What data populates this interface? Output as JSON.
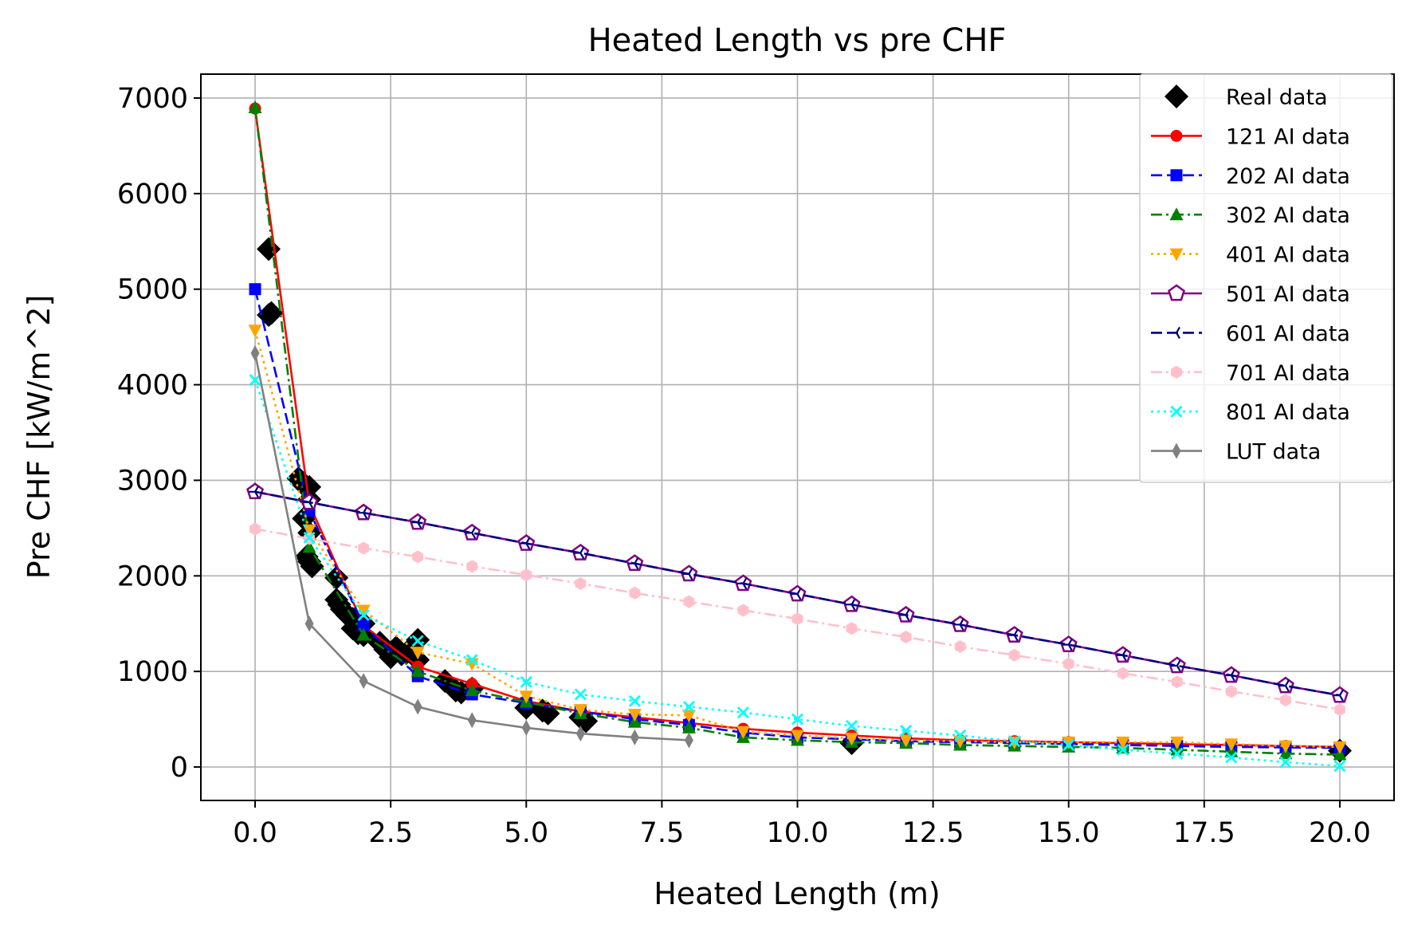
{
  "chart_data": {
    "type": "line",
    "title": "Heated Length vs pre CHF",
    "xlabel": "Heated Length (m)",
    "ylabel": "Pre CHF [kW/m^2]",
    "xlim": [
      -1.0,
      21.0
    ],
    "ylim": [
      -350,
      7250
    ],
    "xticks": [
      0.0,
      2.5,
      5.0,
      7.5,
      10.0,
      12.5,
      15.0,
      17.5,
      20.0
    ],
    "xtick_labels": [
      "0.0",
      "2.5",
      "5.0",
      "7.5",
      "10.0",
      "12.5",
      "15.0",
      "17.5",
      "20.0"
    ],
    "yticks": [
      0,
      1000,
      2000,
      3000,
      4000,
      5000,
      6000,
      7000
    ],
    "ytick_labels": [
      "0",
      "1000",
      "2000",
      "3000",
      "4000",
      "5000",
      "6000",
      "7000"
    ],
    "grid": true,
    "legend_position": "top-right",
    "real_data": {
      "name": "Real data",
      "color": "#000000",
      "marker": "diamond",
      "x": [
        0.25,
        0.25,
        0.3,
        0.8,
        0.9,
        0.9,
        0.95,
        1.0,
        1.0,
        1.0,
        1.0,
        1.05,
        1.5,
        1.5,
        1.55,
        1.6,
        1.7,
        1.8,
        1.8,
        1.9,
        2.0,
        2.0,
        2.3,
        2.4,
        2.5,
        2.6,
        2.7,
        2.8,
        3.0,
        3.0,
        3.5,
        3.7,
        3.8,
        4.0,
        5.0,
        5.3,
        5.4,
        6.0,
        6.1,
        11.0,
        20.0
      ],
      "y": [
        5420,
        4730,
        4750,
        3020,
        2950,
        2600,
        2200,
        2930,
        2800,
        2450,
        2150,
        2100,
        1980,
        1750,
        1700,
        1650,
        1590,
        1550,
        1450,
        1400,
        1500,
        1380,
        1300,
        1230,
        1150,
        1250,
        1180,
        1200,
        1330,
        1120,
        900,
        800,
        780,
        820,
        620,
        590,
        560,
        520,
        480,
        250,
        170
      ]
    },
    "series": [
      {
        "name": "121 AI data",
        "color": "#ff0000",
        "marker": "circle",
        "dash": "solid",
        "x": [
          0,
          1,
          2,
          3,
          4,
          5,
          6,
          7,
          8,
          9,
          10,
          11,
          12,
          13,
          14,
          15,
          16,
          17,
          18,
          19,
          20
        ],
        "y": [
          6890,
          2750,
          1480,
          1050,
          870,
          690,
          580,
          520,
          460,
          400,
          360,
          330,
          300,
          280,
          270,
          260,
          250,
          240,
          230,
          220,
          210
        ]
      },
      {
        "name": "202 AI data",
        "color": "#0000ff",
        "marker": "square",
        "dash": "dashed",
        "x": [
          0,
          1,
          2,
          3,
          4,
          5,
          6,
          7,
          8,
          9,
          10,
          11,
          12,
          13,
          14,
          15,
          16,
          17,
          18,
          19,
          20
        ],
        "y": [
          5000,
          2680,
          1480,
          950,
          760,
          670,
          580,
          500,
          440,
          360,
          310,
          290,
          270,
          260,
          250,
          240,
          230,
          220,
          210,
          205,
          200
        ]
      },
      {
        "name": "302 AI data",
        "color": "#008000",
        "marker": "triangle-up",
        "dash": "dashdot",
        "x": [
          0,
          1,
          2,
          3,
          4,
          5,
          6,
          7,
          8,
          9,
          10,
          11,
          12,
          13,
          14,
          15,
          16,
          17,
          18,
          19,
          20
        ],
        "y": [
          6900,
          2300,
          1380,
          1000,
          800,
          680,
          560,
          470,
          410,
          310,
          280,
          260,
          250,
          230,
          220,
          210,
          200,
          180,
          160,
          140,
          130
        ]
      },
      {
        "name": "401 AI data",
        "color": "#ffa500",
        "marker": "triangle-down",
        "dash": "dotted",
        "x": [
          0,
          1,
          2,
          3,
          4,
          5,
          6,
          7,
          8,
          9,
          10,
          11,
          12,
          13,
          14,
          15,
          16,
          17,
          18,
          19,
          20
        ],
        "y": [
          4570,
          2480,
          1640,
          1200,
          1080,
          740,
          600,
          550,
          540,
          370,
          330,
          300,
          280,
          270,
          260,
          260,
          260,
          260,
          240,
          220,
          210
        ]
      },
      {
        "name": "501 AI data",
        "color": "#800080",
        "marker": "pentagon",
        "dash": "solid",
        "x": [
          0,
          1,
          2,
          3,
          4,
          5,
          6,
          7,
          8,
          9,
          10,
          11,
          12,
          13,
          14,
          15,
          16,
          17,
          18,
          19,
          20
        ],
        "y": [
          2880,
          2770,
          2660,
          2560,
          2450,
          2340,
          2240,
          2130,
          2020,
          1920,
          1810,
          1700,
          1590,
          1490,
          1380,
          1280,
          1170,
          1060,
          960,
          850,
          750
        ]
      },
      {
        "name": "601 AI data",
        "color": "#000080",
        "marker": "tri-left",
        "dash": "dashed",
        "x": [
          0,
          1,
          2,
          3,
          4,
          5,
          6,
          7,
          8,
          9,
          10,
          11,
          12,
          13,
          14,
          15,
          16,
          17,
          18,
          19,
          20
        ],
        "y": [
          2880,
          2770,
          2660,
          2560,
          2450,
          2340,
          2240,
          2130,
          2020,
          1920,
          1810,
          1700,
          1590,
          1490,
          1380,
          1280,
          1170,
          1060,
          960,
          850,
          750
        ]
      },
      {
        "name": "701 AI data",
        "color": "#ffc0cb",
        "marker": "hexagon",
        "dash": "dashdot",
        "x": [
          0,
          1,
          2,
          3,
          4,
          5,
          6,
          7,
          8,
          9,
          10,
          11,
          12,
          13,
          14,
          15,
          16,
          17,
          18,
          19,
          20
        ],
        "y": [
          2490,
          2390,
          2290,
          2200,
          2100,
          2010,
          1920,
          1820,
          1730,
          1640,
          1550,
          1450,
          1360,
          1260,
          1170,
          1080,
          980,
          890,
          790,
          700,
          600
        ]
      },
      {
        "name": "801 AI data",
        "color": "#00ffff",
        "marker": "x",
        "dash": "dotted",
        "x": [
          0,
          1,
          2,
          3,
          4,
          5,
          6,
          7,
          8,
          9,
          10,
          11,
          12,
          13,
          14,
          15,
          16,
          17,
          18,
          19,
          20
        ],
        "y": [
          4050,
          2400,
          1590,
          1320,
          1120,
          890,
          760,
          690,
          630,
          570,
          500,
          430,
          380,
          330,
          270,
          230,
          180,
          140,
          100,
          50,
          10
        ]
      },
      {
        "name": "LUT data",
        "color": "#808080",
        "marker": "thin-diamond",
        "dash": "solid",
        "x": [
          0,
          1,
          2,
          3,
          4,
          5,
          6,
          7,
          8
        ],
        "y": [
          4330,
          1500,
          900,
          630,
          490,
          410,
          350,
          310,
          280
        ]
      }
    ]
  }
}
